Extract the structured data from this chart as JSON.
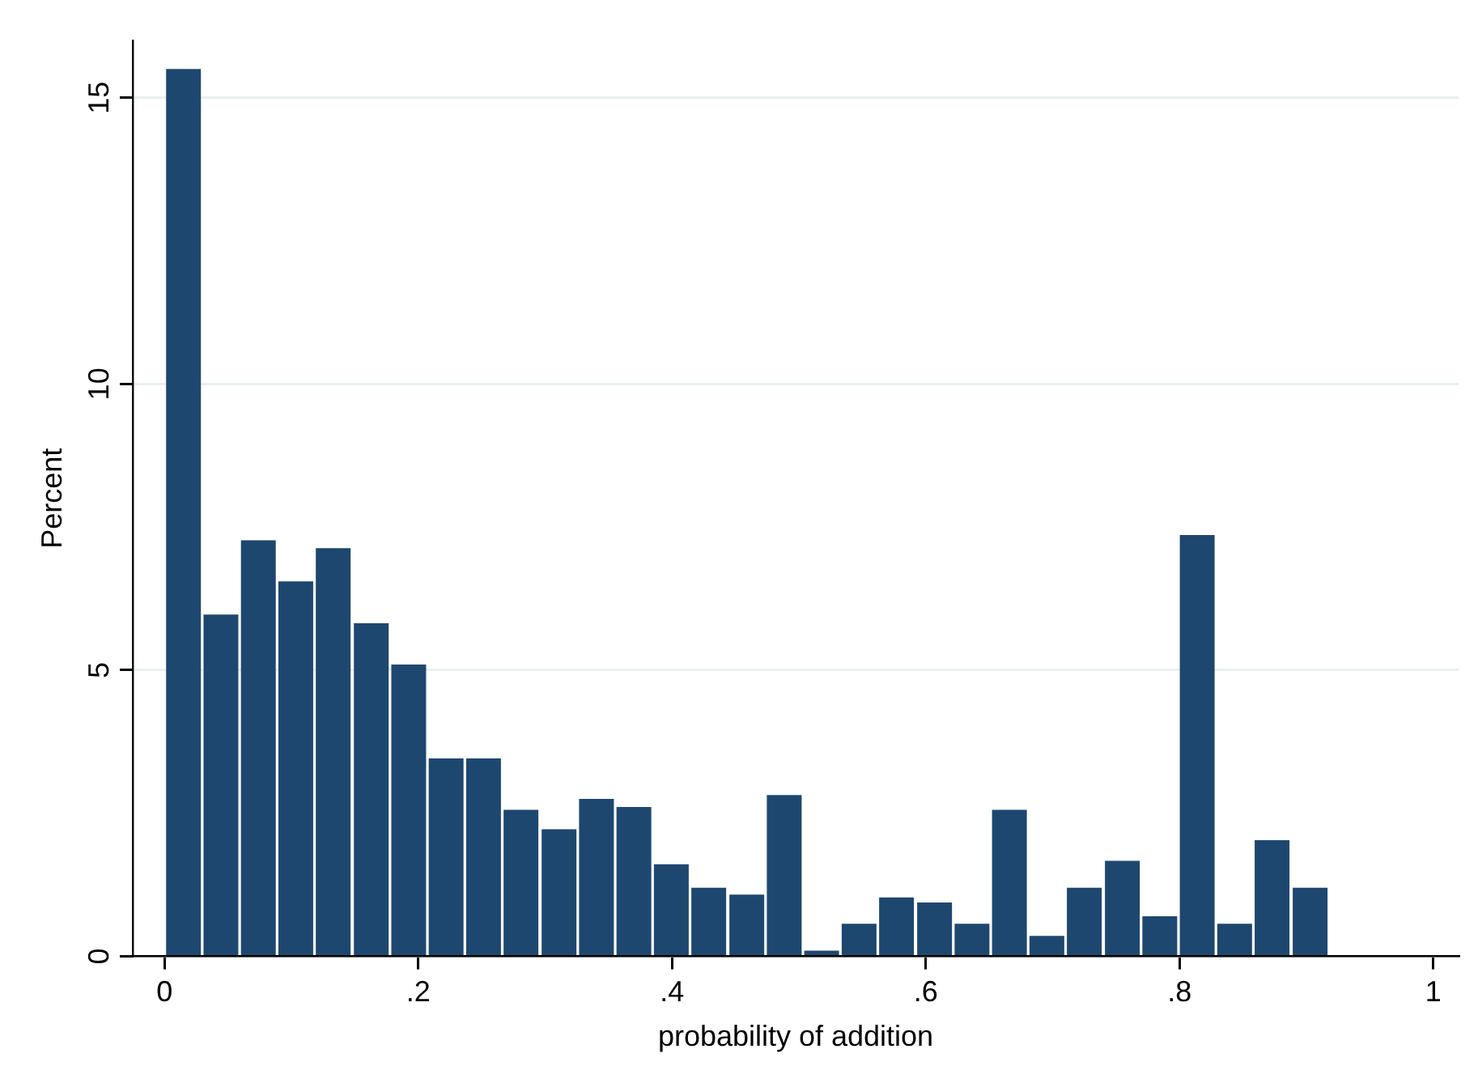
{
  "chart_data": {
    "type": "histogram",
    "xlabel": "probability of addition",
    "ylabel": "Percent",
    "bins": [
      0,
      0.03,
      0.059,
      0.089,
      0.118,
      0.148,
      0.178,
      0.207,
      0.237,
      0.266,
      0.296,
      0.326,
      0.355,
      0.385,
      0.414,
      0.444,
      0.474,
      0.503,
      0.533,
      0.562,
      0.592,
      0.622,
      0.651,
      0.681,
      0.71,
      0.74,
      0.77,
      0.799,
      0.829,
      0.858,
      0.888,
      0.918
    ],
    "values": [
      15.5,
      5.97,
      7.27,
      6.55,
      7.13,
      5.82,
      5.1,
      3.46,
      3.46,
      2.56,
      2.22,
      2.75,
      2.61,
      1.61,
      1.2,
      1.08,
      2.82,
      0.1,
      0.57,
      1.03,
      0.94,
      0.57,
      2.56,
      0.36,
      1.2,
      1.67,
      0.7,
      7.36,
      0.57,
      2.03,
      1.2
    ],
    "color": "#1e4770",
    "xlim": [
      -0.025,
      1.02
    ],
    "xticks": [
      {
        "value": 0,
        "label": "0"
      },
      {
        "value": 0.2,
        "label": ".2"
      },
      {
        "value": 0.4,
        "label": ".4"
      },
      {
        "value": 0.6,
        "label": ".6"
      },
      {
        "value": 0.8,
        "label": ".8"
      },
      {
        "value": 1,
        "label": "1"
      }
    ],
    "ylim": [
      0,
      16
    ],
    "yticks": [
      0,
      5,
      10,
      15
    ],
    "grid": "y",
    "legend": false
  }
}
